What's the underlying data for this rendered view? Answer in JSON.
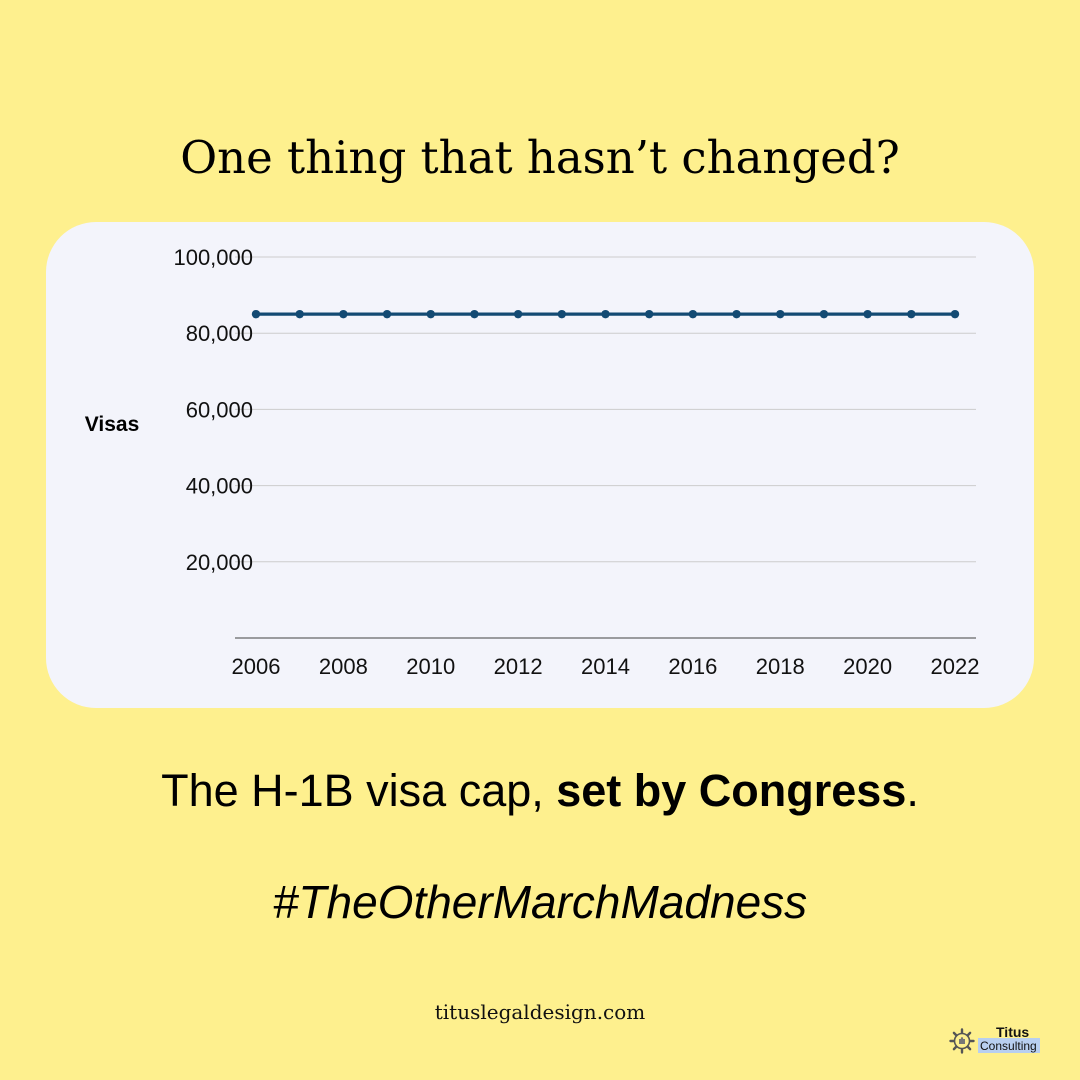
{
  "headline": "One thing that hasn’t changed?",
  "chart_data": {
    "type": "line",
    "x": [
      2006,
      2007,
      2008,
      2009,
      2010,
      2011,
      2012,
      2013,
      2014,
      2015,
      2016,
      2017,
      2018,
      2019,
      2020,
      2021,
      2022
    ],
    "series": [
      {
        "values": [
          85000,
          85000,
          85000,
          85000,
          85000,
          85000,
          85000,
          85000,
          85000,
          85000,
          85000,
          85000,
          85000,
          85000,
          85000,
          85000,
          85000
        ]
      }
    ],
    "ylabel": "Visas",
    "xlabel": "",
    "ylim": [
      0,
      100000
    ],
    "y_ticks": [
      20000,
      40000,
      60000,
      80000,
      100000
    ],
    "y_tick_labels": [
      "20,000",
      "40,000",
      "60,000",
      "80,000",
      "100,000"
    ],
    "x_tick_labels": [
      "2006",
      "2008",
      "2010",
      "2012",
      "2014",
      "2016",
      "2018",
      "2020",
      "2022"
    ],
    "grid": true,
    "legend": "none",
    "colors": {
      "line": "#134a73",
      "grid": "#cccccc",
      "axis": "#666666"
    }
  },
  "caption": {
    "lead": "The H-1B visa cap, ",
    "bold": "set by Congress",
    "tail": "."
  },
  "hashtag": "#TheOtherMarchMadness",
  "website": "tituslegaldesign.com",
  "logo": {
    "name": "Titus",
    "sub": "Consulting",
    "icon": "gear-puzzle-icon"
  },
  "colors": {
    "background": "#fef08e",
    "card": "#f3f4fb",
    "logo_highlight": "#b8cff0"
  }
}
